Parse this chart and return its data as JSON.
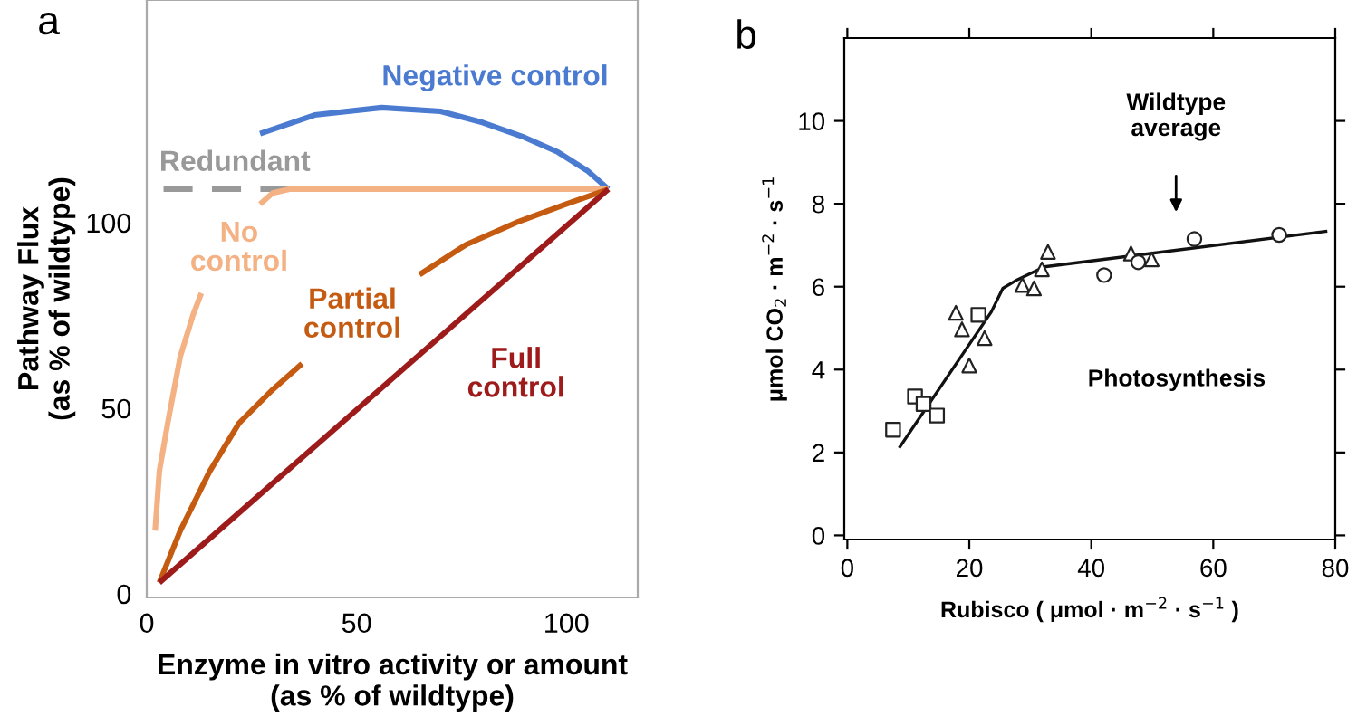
{
  "chart_data": [
    {
      "type": "line",
      "title": "a",
      "xlabel": "Enzyme in vitro activity or amount\n(as % of wildtype)",
      "ylabel": "Pathway Flux\n(as % of wildtype)",
      "xlim": [
        0,
        117
      ],
      "ylim": [
        -1,
        160
      ],
      "xticks": [
        0,
        50,
        100
      ],
      "yticks": [
        0,
        50,
        100
      ],
      "grid": false,
      "legend": false,
      "series": [
        {
          "name": "Negative control",
          "color": "#4a7bd0",
          "x": [
            27,
            40,
            56,
            70,
            80,
            90,
            98,
            105,
            110
          ],
          "values": [
            124,
            129,
            131,
            130,
            127,
            123,
            119,
            114,
            109
          ]
        },
        {
          "name": "Redundant",
          "color": "#999999",
          "line_style": "dashed",
          "x": [
            4,
            34
          ],
          "values": [
            109,
            109
          ]
        },
        {
          "name": "No\ncontrol",
          "color": "#f4b183",
          "x": [
            2,
            3,
            5,
            8,
            11,
            13,
            null,
            27,
            30,
            34,
            60,
            110
          ],
          "values": [
            17,
            33,
            46,
            64,
            75,
            81,
            null,
            105,
            108,
            109,
            109,
            109
          ]
        },
        {
          "name": "Partial\ncontrol",
          "color": "#c55a11",
          "x": [
            3,
            8,
            15,
            22,
            30,
            37,
            null,
            65,
            76,
            88,
            100,
            110
          ],
          "values": [
            3,
            17,
            33,
            46,
            55,
            62,
            null,
            86,
            94,
            100,
            105,
            109
          ]
        },
        {
          "name": "Full\ncontrol",
          "color": "#9e1b1b",
          "x": [
            3,
            110
          ],
          "values": [
            3,
            109
          ]
        }
      ]
    },
    {
      "type": "scatter",
      "title": "b",
      "xlabel": "Rubisco ( μmol · m$^{−2}$ · s$^{−1}$ )",
      "ylabel": "μmol CO$_{2}$ · m$^{−2}$ · s$^{−1}$",
      "xlim": [
        -0.5,
        80
      ],
      "ylim": [
        -0.1,
        12
      ],
      "xticks": [
        0,
        20,
        40,
        60,
        80
      ],
      "yticks": [
        0,
        2,
        4,
        6,
        8,
        10
      ],
      "grid": false,
      "legend": false,
      "annotations": [
        "Wildtype\naverage",
        "Photosynthesis"
      ],
      "series": [
        {
          "marker": "square",
          "color": "#222222",
          "x": [
            7.5,
            11.1,
            12.5,
            14.7,
            21.5
          ],
          "values": [
            2.55,
            3.35,
            3.17,
            2.89,
            5.32
          ]
        },
        {
          "marker": "triangle",
          "color": "#222222",
          "x": [
            17.8,
            18.8,
            20,
            22.5,
            28.7,
            30.6,
            31.9,
            32.9,
            46.5,
            49.9
          ],
          "values": [
            5.37,
            4.97,
            4.1,
            4.76,
            6.04,
            5.96,
            6.42,
            6.84,
            6.8,
            6.66
          ]
        },
        {
          "marker": "circle",
          "color": "#222222",
          "x": [
            42.1,
            47.7,
            56.9,
            70.8
          ],
          "values": [
            6.28,
            6.59,
            7.15,
            7.25
          ]
        },
        {
          "type": "line",
          "marker": "none",
          "color": "#111111",
          "x": [
            8.5,
            23.6,
            25.5,
            27.9,
            32.3,
            78.7
          ],
          "values": [
            2.11,
            5.39,
            5.96,
            6.17,
            6.48,
            7.34
          ]
        }
      ]
    }
  ]
}
